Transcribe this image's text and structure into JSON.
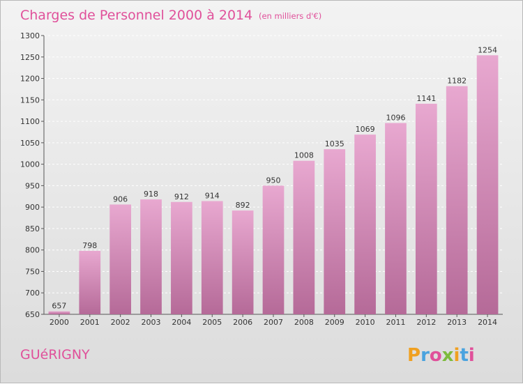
{
  "chart_data": {
    "type": "bar",
    "title": "Charges de Personnel 2000 à 2014",
    "subtitle": "(en milliers d'€)",
    "categories": [
      "2000",
      "2001",
      "2002",
      "2003",
      "2004",
      "2005",
      "2006",
      "2007",
      "2008",
      "2009",
      "2010",
      "2011",
      "2012",
      "2013",
      "2014"
    ],
    "values": [
      657,
      798,
      906,
      918,
      912,
      914,
      892,
      950,
      1008,
      1035,
      1069,
      1096,
      1141,
      1182,
      1254
    ],
    "ylim": [
      650,
      1300
    ],
    "yticks": [
      650,
      700,
      750,
      800,
      850,
      900,
      950,
      1000,
      1050,
      1100,
      1150,
      1200,
      1250,
      1300
    ],
    "grid": true,
    "legend": "none"
  },
  "commune": "GUéRIGNY",
  "logo": {
    "letters": [
      "P",
      "r",
      "o",
      "x",
      "i",
      "t",
      "i"
    ],
    "colors": [
      "#f0a020",
      "#4aa3df",
      "#e0509a",
      "#7dbb3c",
      "#f0a020",
      "#4aa3df",
      "#e0509a"
    ]
  },
  "colors": {
    "bar_top": "#e8a8d0",
    "bar_bottom": "#b56a98",
    "accent": "#e0509a"
  }
}
